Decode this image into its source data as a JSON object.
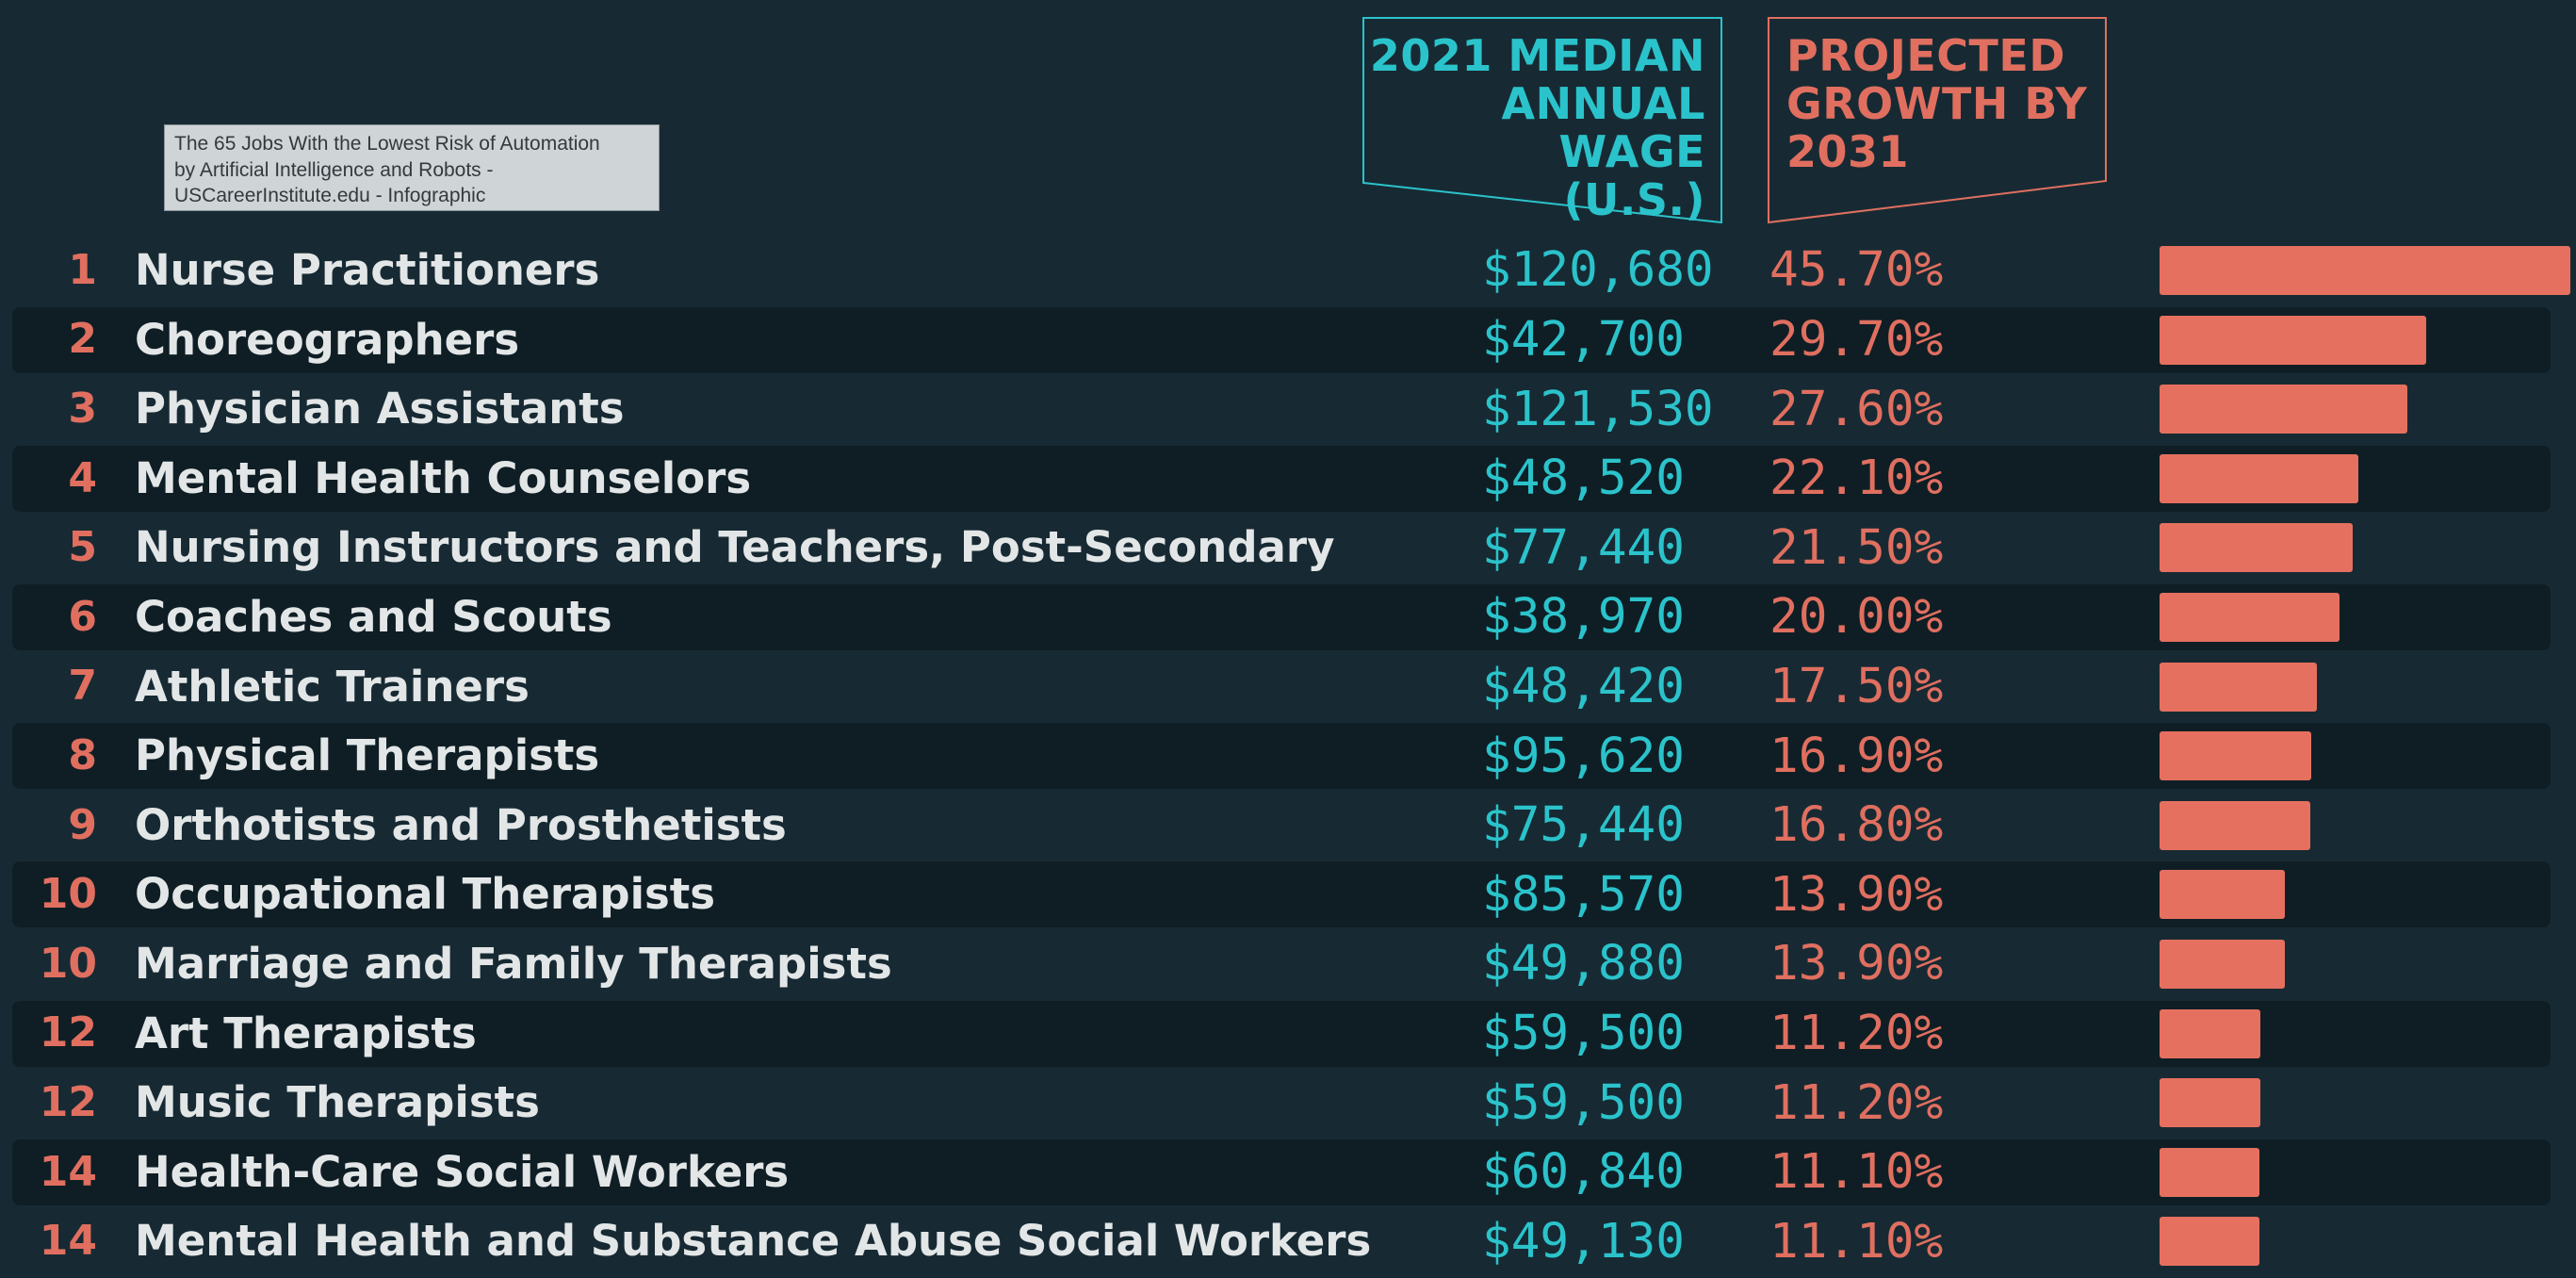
{
  "tooltip": {
    "line1": "The 65 Jobs With the Lowest Risk of Automation",
    "line2": "by Artificial Intelligence and Robots -",
    "line3": "USCareerInstitute.edu - Infographic"
  },
  "headers": {
    "wage": [
      "2021 MEDIAN",
      "ANNUAL WAGE",
      "(U.S.)"
    ],
    "growth": [
      "PROJECTED",
      "GROWTH BY",
      "2031"
    ]
  },
  "colors": {
    "background": "#172a33",
    "row_dark": "#0f1e25",
    "accent_teal": "#2bc3cb",
    "accent_coral": "#e06f60",
    "bar": "#e6705f",
    "text": "#e3e6e7"
  },
  "chart_data": {
    "type": "bar",
    "orientation": "horizontal",
    "xlim": [
      0,
      45.7
    ],
    "grid": false,
    "rows": [
      {
        "rank": "1",
        "job": "Nurse Practitioners",
        "wage": "$120,680",
        "growth_label": "45.70%",
        "growth": 45.7
      },
      {
        "rank": "2",
        "job": "Choreographers",
        "wage": "$42,700",
        "growth_label": "29.70%",
        "growth": 29.7
      },
      {
        "rank": "3",
        "job": "Physician Assistants",
        "wage": "$121,530",
        "growth_label": "27.60%",
        "growth": 27.6
      },
      {
        "rank": "4",
        "job": "Mental Health Counselors",
        "wage": "$48,520",
        "growth_label": "22.10%",
        "growth": 22.1
      },
      {
        "rank": "5",
        "job": "Nursing Instructors and Teachers, Post-Secondary",
        "wage": "$77,440",
        "growth_label": "21.50%",
        "growth": 21.5
      },
      {
        "rank": "6",
        "job": "Coaches and Scouts",
        "wage": "$38,970",
        "growth_label": "20.00%",
        "growth": 20.0
      },
      {
        "rank": "7",
        "job": "Athletic Trainers",
        "wage": "$48,420",
        "growth_label": "17.50%",
        "growth": 17.5
      },
      {
        "rank": "8",
        "job": "Physical Therapists",
        "wage": "$95,620",
        "growth_label": "16.90%",
        "growth": 16.9
      },
      {
        "rank": "9",
        "job": "Orthotists and Prosthetists",
        "wage": "$75,440",
        "growth_label": "16.80%",
        "growth": 16.8
      },
      {
        "rank": "10",
        "job": "Occupational Therapists",
        "wage": "$85,570",
        "growth_label": "13.90%",
        "growth": 13.9
      },
      {
        "rank": "10",
        "job": "Marriage and Family Therapists",
        "wage": "$49,880",
        "growth_label": "13.90%",
        "growth": 13.9
      },
      {
        "rank": "12",
        "job": "Art Therapists",
        "wage": "$59,500",
        "growth_label": "11.20%",
        "growth": 11.2
      },
      {
        "rank": "12",
        "job": "Music Therapists",
        "wage": "$59,500",
        "growth_label": "11.20%",
        "growth": 11.2
      },
      {
        "rank": "14",
        "job": "Health-Care Social Workers",
        "wage": "$60,840",
        "growth_label": "11.10%",
        "growth": 11.1
      },
      {
        "rank": "14",
        "job": "Mental Health and Substance Abuse Social Workers",
        "wage": "$49,130",
        "growth_label": "11.10%",
        "growth": 11.1
      }
    ]
  }
}
